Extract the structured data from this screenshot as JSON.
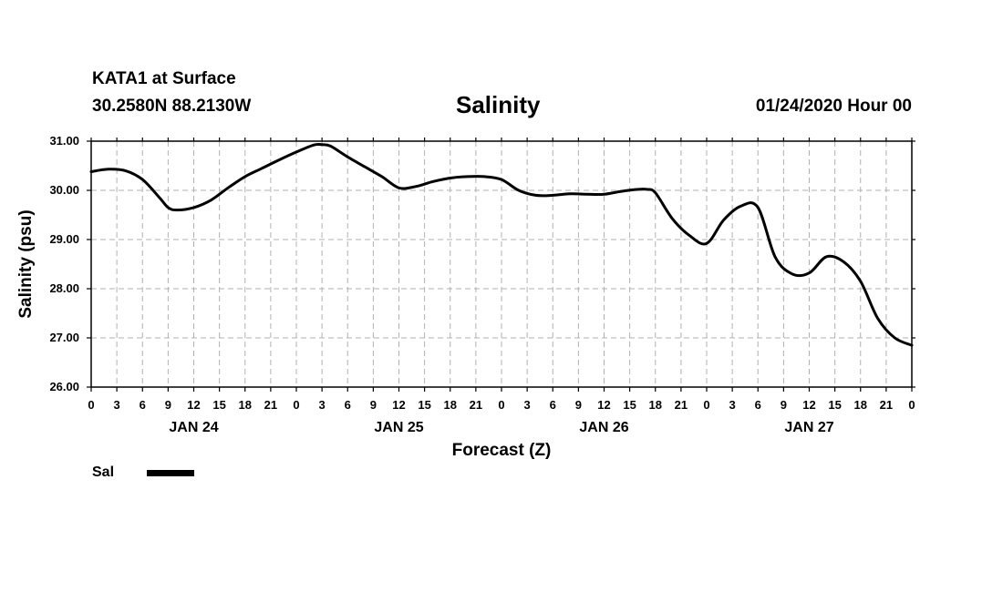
{
  "header": {
    "station": "KATA1 at Surface",
    "coords": "30.2580N 88.2130W",
    "title": "Salinity",
    "timestamp": "01/24/2020 Hour 00"
  },
  "chart_data": {
    "type": "line",
    "title": "Salinity",
    "xlabel": "Forecast (Z)",
    "ylabel": "Salinity (psu)",
    "ylim": [
      26,
      31
    ],
    "xlim": [
      0,
      96
    ],
    "grid": true,
    "legend_position": "bottom-left",
    "y_ticks": [
      "26.00",
      "27.00",
      "28.00",
      "29.00",
      "30.00",
      "31.00"
    ],
    "x_tick_labels": [
      "0",
      "3",
      "6",
      "9",
      "12",
      "15",
      "18",
      "21",
      "0",
      "3",
      "6",
      "9",
      "12",
      "15",
      "18",
      "21",
      "0",
      "3",
      "6",
      "9",
      "12",
      "15",
      "18",
      "21",
      "0",
      "3",
      "6",
      "9",
      "12",
      "15",
      "18",
      "21",
      "0"
    ],
    "day_labels": [
      {
        "label": "JAN 24",
        "hour": 12
      },
      {
        "label": "JAN 25",
        "hour": 36
      },
      {
        "label": "JAN 26",
        "hour": 60
      },
      {
        "label": "JAN 27",
        "hour": 84
      }
    ],
    "series": [
      {
        "name": "Sal",
        "color": "#000000",
        "x": [
          0,
          2,
          4,
          6,
          8,
          9,
          10,
          12,
          14,
          16,
          18,
          20,
          22,
          24,
          26,
          27,
          28,
          30,
          32,
          34,
          36,
          38,
          40,
          42,
          44,
          46,
          48,
          50,
          52,
          54,
          56,
          58,
          60,
          62,
          64,
          65,
          66,
          68,
          70,
          72,
          74,
          76,
          78,
          80,
          82,
          84,
          86,
          88,
          90,
          92,
          94,
          96
        ],
        "values": [
          30.38,
          30.43,
          30.4,
          30.22,
          29.85,
          29.65,
          29.6,
          29.65,
          29.8,
          30.05,
          30.28,
          30.45,
          30.62,
          30.78,
          30.92,
          30.93,
          30.9,
          30.68,
          30.48,
          30.28,
          30.05,
          30.08,
          30.18,
          30.25,
          30.28,
          30.28,
          30.22,
          30.0,
          29.9,
          29.9,
          29.93,
          29.92,
          29.92,
          29.98,
          30.02,
          30.02,
          29.95,
          29.42,
          29.08,
          28.92,
          29.4,
          29.68,
          29.65,
          28.65,
          28.3,
          28.32,
          28.65,
          28.55,
          28.15,
          27.4,
          27.0,
          26.85
        ]
      }
    ]
  },
  "legend": {
    "label": "Sal"
  }
}
